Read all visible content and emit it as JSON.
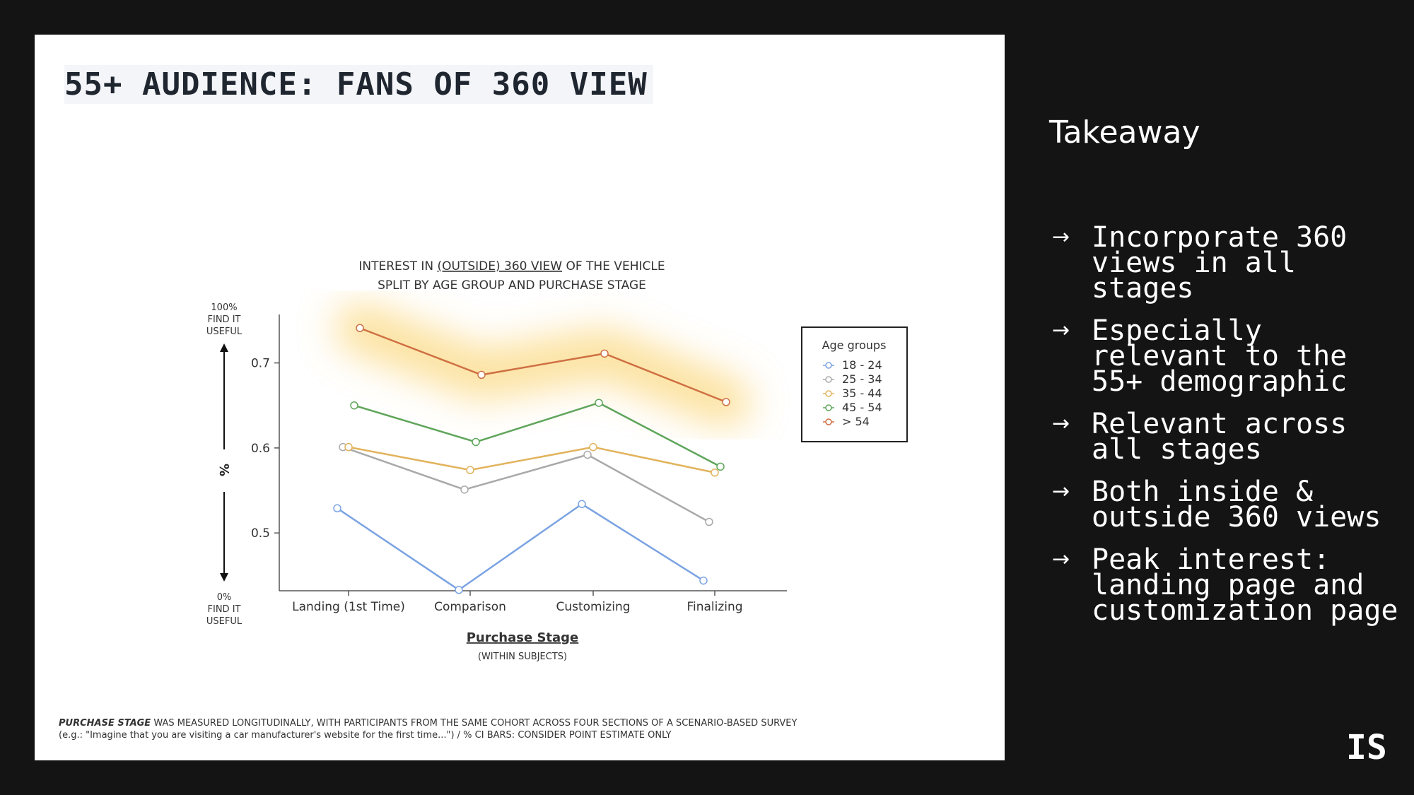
{
  "slide": {
    "title": "55+ AUDIENCE: FANS OF 360 VIEW",
    "footnote_em": "PURCHASE STAGE",
    "footnote_rest": " WAS MEASURED LONGITUDINALLY, WITH PARTICIPANTS FROM THE SAME COHORT ACROSS FOUR SECTIONS OF A SCENARIO-BASED SURVEY",
    "footnote_line2": "(e.g.: \"Imagine that you are visiting a car manufacturer's website for the first time...\") / % CI BARS: CONSIDER POINT ESTIMATE ONLY"
  },
  "chart_data": {
    "type": "line",
    "title_parts": [
      "INTEREST IN ",
      "(OUTSIDE) 360 VIEW",
      " OF THE VEHICLE"
    ],
    "subtitle": "SPLIT BY AGE GROUP AND PURCHASE STAGE",
    "xlabel": "Purchase Stage",
    "xlabel_sub": "(WITHIN SUBJECTS)",
    "ylabel": "%",
    "ytop_note": [
      "100%",
      "FIND IT",
      "USEFUL"
    ],
    "ybottom_note": [
      "0%",
      "FIND IT",
      "USEFUL"
    ],
    "categories": [
      "Landing (1st Time)",
      "Comparison",
      "Customizing",
      "Finalizing"
    ],
    "yticks": [
      0.5,
      0.6,
      0.7
    ],
    "ylim": [
      0.432,
      0.757
    ],
    "legend_title": "Age groups",
    "legend_position": "right",
    "highlight_series": "> 54",
    "series": [
      {
        "name": "18 - 24",
        "color": "#7ba3e2",
        "values": [
          0.529,
          0.433,
          0.534,
          0.444
        ]
      },
      {
        "name": "25 - 34",
        "color": "#a9a9a9",
        "values": [
          0.601,
          0.551,
          0.592,
          0.513
        ]
      },
      {
        "name": "35 - 44",
        "color": "#e2b35c",
        "values": [
          0.601,
          0.574,
          0.601,
          0.571
        ]
      },
      {
        "name": "45 - 54",
        "color": "#5fa55a",
        "values": [
          0.65,
          0.607,
          0.653,
          0.578
        ]
      },
      {
        "name": "> 54",
        "color": "#cf7043",
        "values": [
          0.741,
          0.686,
          0.711,
          0.654
        ]
      }
    ]
  },
  "takeaway": {
    "title": "Takeaway",
    "arrow_icon": "→",
    "items": [
      "Incorporate 360 views in all stages",
      "Especially relevant to the 55+ demographic",
      "Relevant across all stages",
      "Both inside & outside 360 views",
      "Peak interest: landing page and customization page"
    ]
  },
  "brand": {
    "logo": "IS"
  }
}
